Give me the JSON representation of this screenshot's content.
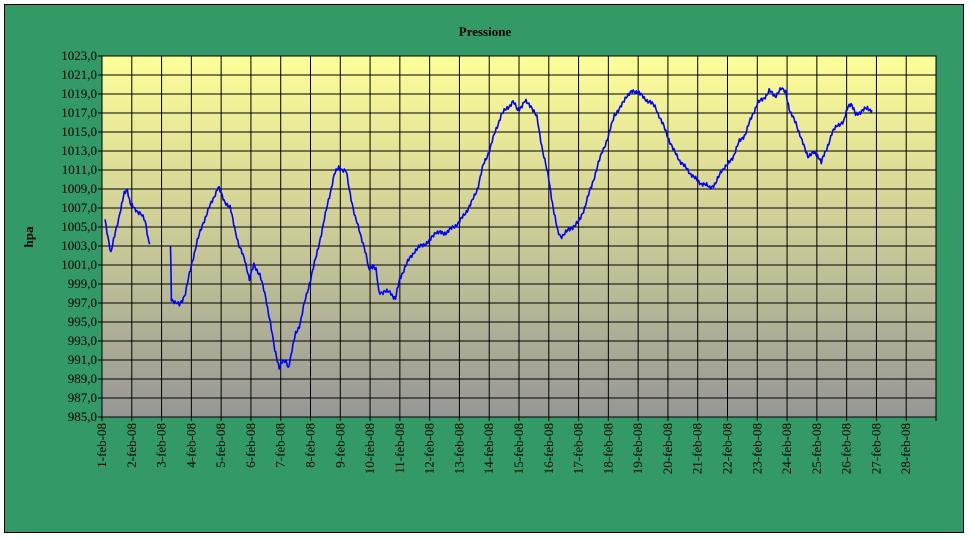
{
  "chart_data": {
    "type": "line",
    "title": "Pressione",
    "xlabel": "",
    "ylabel": "hpa",
    "ylim": [
      985.0,
      1023.0
    ],
    "y_ticks": [
      "985,0",
      "987,0",
      "989,0",
      "991,0",
      "993,0",
      "995,0",
      "997,0",
      "999,0",
      "1001,0",
      "1003,0",
      "1005,0",
      "1007,0",
      "1009,0",
      "1011,0",
      "1013,0",
      "1015,0",
      "1017,0",
      "1019,0",
      "1021,0",
      "1023,0"
    ],
    "x_ticks": [
      "1-feb-08",
      "2-feb-08",
      "3-feb-08",
      "4-feb-08",
      "5-feb-08",
      "6-feb-08",
      "7-feb-08",
      "8-feb-08",
      "9-feb-08",
      "10-feb-08",
      "11-feb-08",
      "12-feb-08",
      "13-feb-08",
      "14-feb-08",
      "15-feb-08",
      "16-feb-08",
      "17-feb-08",
      "18-feb-08",
      "19-feb-08",
      "20-feb-08",
      "21-feb-08",
      "22-feb-08",
      "23-feb-08",
      "24-feb-08",
      "25-feb-08",
      "26-feb-08",
      "27-feb-08",
      "28-feb-08"
    ],
    "grid": true,
    "colors": {
      "background": "#339966",
      "line": "#0000ff",
      "plot_top": "#ffff99",
      "plot_bottom": "#969696"
    },
    "series": [
      {
        "segments": [
          [
            [
              0.1,
              1005.8
            ],
            [
              0.2,
              1004.0
            ],
            [
              0.3,
              1002.2
            ],
            [
              0.45,
              1004.5
            ],
            [
              0.6,
              1006.5
            ],
            [
              0.75,
              1008.5
            ],
            [
              0.85,
              1009.0
            ],
            [
              0.95,
              1007.5
            ],
            [
              1.1,
              1006.8
            ],
            [
              1.3,
              1006.5
            ],
            [
              1.45,
              1005.5
            ],
            [
              1.55,
              1003.8
            ],
            [
              1.6,
              1003.2
            ]
          ],
          [
            [
              2.3,
              1003.0
            ],
            [
              2.33,
              997.5
            ],
            [
              2.45,
              997.0
            ],
            [
              2.6,
              996.8
            ],
            [
              2.8,
              998.0
            ],
            [
              3.0,
              1001.0
            ],
            [
              3.2,
              1003.5
            ],
            [
              3.4,
              1005.5
            ],
            [
              3.6,
              1007.0
            ],
            [
              3.8,
              1008.5
            ],
            [
              3.9,
              1009.2
            ],
            [
              4.1,
              1007.8
            ],
            [
              4.3,
              1007.0
            ],
            [
              4.45,
              1005.0
            ],
            [
              4.6,
              1003.0
            ],
            [
              4.8,
              1001.5
            ],
            [
              4.95,
              999.5
            ],
            [
              5.1,
              1001.0
            ],
            [
              5.3,
              1000.0
            ],
            [
              5.5,
              997.5
            ],
            [
              5.65,
              995.0
            ],
            [
              5.8,
              992.0
            ],
            [
              5.95,
              990.3
            ],
            [
              6.05,
              990.8
            ],
            [
              6.2,
              990.8
            ],
            [
              6.25,
              990.2
            ],
            [
              6.35,
              991.5
            ],
            [
              6.5,
              993.8
            ],
            [
              6.65,
              994.8
            ],
            [
              6.8,
              997.0
            ],
            [
              7.0,
              999.5
            ],
            [
              7.2,
              1002.0
            ],
            [
              7.4,
              1004.8
            ],
            [
              7.6,
              1007.8
            ],
            [
              7.8,
              1010.5
            ],
            [
              7.95,
              1011.3
            ],
            [
              8.1,
              1011.0
            ],
            [
              8.2,
              1010.8
            ],
            [
              8.3,
              1009.0
            ],
            [
              8.5,
              1006.0
            ],
            [
              8.7,
              1004.0
            ],
            [
              8.8,
              1003.0
            ],
            [
              8.9,
              1001.5
            ],
            [
              8.95,
              1000.5
            ],
            [
              9.1,
              1001.0
            ],
            [
              9.2,
              1000.5
            ],
            [
              9.3,
              998.0
            ],
            [
              9.5,
              998.3
            ],
            [
              9.7,
              998.0
            ],
            [
              9.85,
              997.5
            ],
            [
              10.0,
              999.5
            ],
            [
              10.2,
              1001.0
            ],
            [
              10.5,
              1002.5
            ],
            [
              10.7,
              1003.0
            ],
            [
              11.0,
              1003.5
            ],
            [
              11.2,
              1004.5
            ],
            [
              11.45,
              1004.3
            ],
            [
              11.6,
              1004.5
            ],
            [
              11.8,
              1005.0
            ],
            [
              12.0,
              1005.5
            ],
            [
              12.2,
              1006.5
            ],
            [
              12.4,
              1007.5
            ],
            [
              12.6,
              1009.0
            ],
            [
              12.8,
              1011.5
            ],
            [
              13.0,
              1013.0
            ],
            [
              13.2,
              1015.0
            ],
            [
              13.4,
              1016.8
            ],
            [
              13.6,
              1017.5
            ],
            [
              13.8,
              1018.2
            ],
            [
              13.95,
              1017.3
            ],
            [
              14.1,
              1017.8
            ],
            [
              14.2,
              1018.2
            ],
            [
              14.4,
              1017.8
            ],
            [
              14.6,
              1016.5
            ],
            [
              14.8,
              1013.0
            ],
            [
              15.0,
              1010.0
            ],
            [
              15.15,
              1007.0
            ],
            [
              15.3,
              1004.5
            ],
            [
              15.4,
              1004.0
            ],
            [
              15.6,
              1004.5
            ],
            [
              15.8,
              1005.0
            ],
            [
              16.0,
              1005.5
            ],
            [
              16.2,
              1007.0
            ],
            [
              16.4,
              1009.0
            ],
            [
              16.6,
              1011.0
            ],
            [
              16.8,
              1013.0
            ],
            [
              17.0,
              1014.5
            ],
            [
              17.2,
              1016.8
            ],
            [
              17.4,
              1017.5
            ],
            [
              17.6,
              1018.8
            ],
            [
              17.8,
              1019.2
            ],
            [
              18.0,
              1019.3
            ],
            [
              18.2,
              1018.5
            ],
            [
              18.4,
              1018.2
            ],
            [
              18.6,
              1017.5
            ],
            [
              18.8,
              1016.0
            ],
            [
              19.0,
              1014.5
            ],
            [
              19.2,
              1013.0
            ],
            [
              19.4,
              1012.0
            ],
            [
              19.6,
              1011.2
            ],
            [
              19.8,
              1010.5
            ],
            [
              20.0,
              1009.8
            ],
            [
              20.2,
              1009.5
            ],
            [
              20.4,
              1009.2
            ],
            [
              20.6,
              1009.5
            ],
            [
              20.8,
              1011.0
            ],
            [
              21.0,
              1011.5
            ],
            [
              21.2,
              1012.5
            ],
            [
              21.4,
              1014.0
            ],
            [
              21.6,
              1014.8
            ],
            [
              21.8,
              1016.5
            ],
            [
              22.0,
              1018.0
            ],
            [
              22.2,
              1018.5
            ],
            [
              22.4,
              1019.3
            ],
            [
              22.6,
              1018.8
            ],
            [
              22.8,
              1019.5
            ],
            [
              22.95,
              1019.3
            ],
            [
              23.1,
              1017.0
            ],
            [
              23.3,
              1016.0
            ],
            [
              23.5,
              1014.0
            ],
            [
              23.7,
              1012.5
            ],
            [
              23.9,
              1012.8
            ],
            [
              24.05,
              1012.5
            ],
            [
              24.15,
              1011.8
            ],
            [
              24.3,
              1013.0
            ],
            [
              24.5,
              1014.8
            ],
            [
              24.7,
              1015.8
            ],
            [
              24.9,
              1016.0
            ],
            [
              25.05,
              1017.8
            ],
            [
              25.15,
              1018.0
            ],
            [
              25.3,
              1016.8
            ],
            [
              25.5,
              1017.2
            ],
            [
              25.7,
              1017.5
            ],
            [
              25.85,
              1017.3
            ]
          ]
        ]
      }
    ]
  }
}
